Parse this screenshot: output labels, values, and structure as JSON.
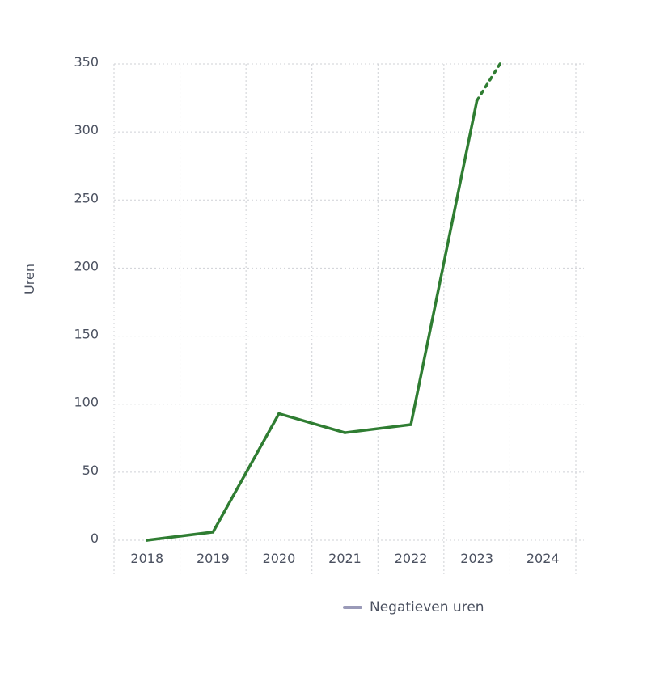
{
  "chart_data": {
    "type": "line",
    "ylabel": "Uren",
    "yticks": [
      0,
      50,
      100,
      150,
      200,
      250,
      300,
      350
    ],
    "ylim": [
      0,
      350
    ],
    "categories": [
      "2018",
      "2019",
      "2020",
      "2021",
      "2022",
      "2023",
      "2024"
    ],
    "grid": true,
    "legend_position": "bottom",
    "series": [
      {
        "name": "Negatieven uren",
        "color": "#2f7d32",
        "legend_color": "#9a9ab8",
        "values": [
          0,
          6,
          93,
          79,
          85,
          323,
          null
        ],
        "projection": {
          "from_index": 5,
          "to_index": 6,
          "values": [
            323,
            350
          ]
        }
      }
    ]
  }
}
